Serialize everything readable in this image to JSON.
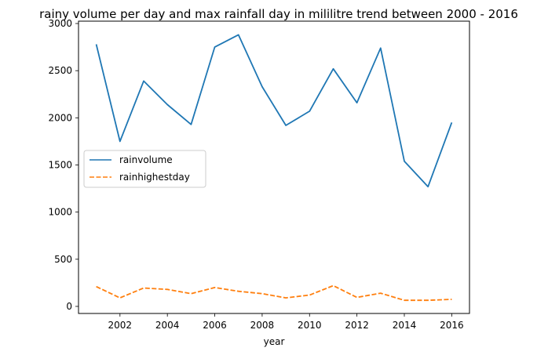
{
  "chart_data": {
    "type": "line",
    "title": "rainy volume per day and max rainfall day in mililitre trend between 2000 - 2016",
    "xlabel": "year",
    "ylabel": "",
    "x": [
      2001,
      2002,
      2003,
      2004,
      2005,
      2006,
      2007,
      2008,
      2009,
      2010,
      2011,
      2012,
      2013,
      2014,
      2015,
      2016
    ],
    "xlim": [
      2000.25,
      2016.75
    ],
    "ylim": [
      -75,
      3025
    ],
    "xticks": [
      "2002",
      "2004",
      "2006",
      "2008",
      "2010",
      "2012",
      "2014",
      "2016"
    ],
    "yticks": [
      "0",
      "500",
      "1000",
      "1500",
      "2000",
      "2500",
      "3000"
    ],
    "grid": false,
    "legend_placement": "center-left",
    "series": [
      {
        "name": "rainvolume",
        "color": "#1f77b4",
        "style": "solid",
        "values": [
          2780,
          1750,
          2390,
          2140,
          1930,
          2750,
          2880,
          2330,
          1920,
          2070,
          2520,
          2160,
          2740,
          1540,
          1270,
          1950
        ]
      },
      {
        "name": "rainhighestday",
        "color": "#ff7f0e",
        "style": "dashed",
        "values": [
          210,
          90,
          195,
          180,
          135,
          200,
          160,
          135,
          90,
          120,
          220,
          95,
          140,
          65,
          65,
          75
        ]
      }
    ]
  }
}
